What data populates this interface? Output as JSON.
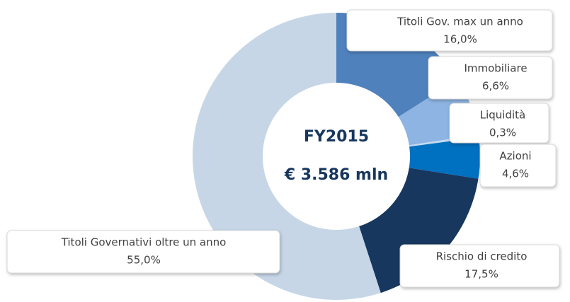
{
  "chart_data": {
    "type": "donut",
    "center_labels": [
      "FY2015",
      "€ 3.586 mln"
    ],
    "categories": [
      "Titoli Gov. max un anno",
      "Immobiliare",
      "Liquidità",
      "Azioni",
      "Rischio di credito",
      "Titoli Governativi oltre un anno"
    ],
    "values": [
      16.0,
      6.6,
      0.3,
      4.6,
      17.5,
      55.0
    ],
    "value_labels": [
      "16,0%",
      "6,6%",
      "0,3%",
      "4,6%",
      "17,5%",
      "55,0%"
    ],
    "colors": [
      "#4f81bd",
      "#8db4e2",
      "#c5d9f1",
      "#0070c0",
      "#17375e",
      "#c6d6e6"
    ]
  }
}
